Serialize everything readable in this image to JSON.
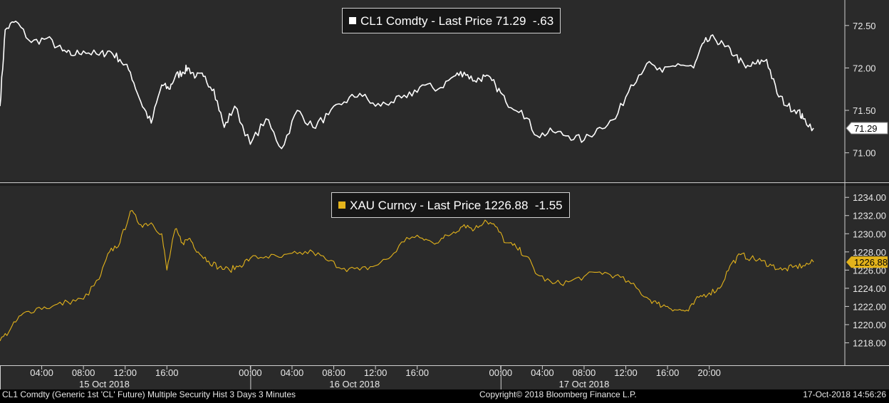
{
  "chart_data": [
    {
      "type": "line",
      "series": [
        {
          "name": "CL1 Comdty - Last Price",
          "color": "#ffffff",
          "last_value": "71.29",
          "change": "-.63",
          "x": [
            0,
            0.5,
            1.5,
            3,
            4.5,
            6,
            6.8,
            8,
            9.5,
            10.5,
            11.5,
            12.5,
            13.5,
            14.5,
            15.5,
            16.2,
            16.8,
            17.5,
            18,
            18.8,
            19.5,
            20.5,
            21.5,
            22.5,
            24,
            25.5,
            27,
            28.5,
            30,
            31.5,
            33,
            34.5,
            36,
            37.5,
            39,
            40.5,
            42,
            43.5,
            44.5,
            45.5,
            46.5,
            47.5,
            48.5,
            50,
            51.5,
            53,
            54.5,
            56,
            57.5,
            59,
            60.5,
            62,
            63.5,
            65,
            66.5,
            67.5,
            68.5,
            69.5,
            70.5,
            71.5,
            72.5,
            73.5,
            74.5,
            75.5,
            76.5,
            77,
            78
          ],
          "values": [
            71.55,
            72.45,
            72.55,
            72.3,
            72.35,
            72.2,
            72.15,
            72.2,
            72.15,
            72.2,
            72.1,
            71.95,
            71.6,
            71.35,
            71.8,
            71.75,
            71.9,
            71.95,
            72.0,
            71.9,
            71.9,
            71.75,
            71.3,
            71.55,
            71.1,
            71.4,
            71.05,
            71.5,
            71.3,
            71.45,
            71.6,
            71.7,
            71.55,
            71.6,
            71.65,
            71.8,
            71.75,
            71.9,
            71.95,
            71.85,
            71.9,
            71.8,
            71.6,
            71.5,
            71.2,
            71.25,
            71.2,
            71.15,
            71.3,
            71.4,
            71.8,
            72.05,
            71.95,
            72.05,
            72.0,
            72.3,
            72.35,
            72.25,
            72.15,
            72.0,
            72.05,
            72.1,
            71.7,
            71.55,
            71.5,
            71.4,
            71.29
          ],
          "min": 70.9
        }
      ],
      "ylim": [
        70.72,
        72.75
      ],
      "yticks": [
        "72.50",
        "72.00",
        "71.50",
        "71.00"
      ]
    },
    {
      "type": "line",
      "series": [
        {
          "name": "XAU Curncy - Last Price",
          "color": "#e3b31b",
          "last_value": "1226.88",
          "change": "-1.55",
          "x": [
            0,
            1,
            2,
            3.5,
            5,
            6.5,
            8,
            9.5,
            10.5,
            11.5,
            12.5,
            13.5,
            14.5,
            15.5,
            16,
            16.8,
            17.5,
            18.2,
            19,
            20,
            21,
            22,
            23,
            24,
            25.5,
            27,
            28.5,
            30,
            31.5,
            33,
            34.5,
            36,
            37.5,
            39,
            40.5,
            41.5,
            42.5,
            43.5,
            44.5,
            45.5,
            46.5,
            47.5,
            48.5,
            49.5,
            50.5,
            51.5,
            53,
            54.5,
            56,
            57.5,
            59,
            60.5,
            62,
            63,
            64,
            65,
            66,
            67,
            68,
            69,
            70,
            71,
            72,
            73,
            74,
            75,
            76,
            77,
            78
          ],
          "values": [
            1218.2,
            1219.5,
            1221.0,
            1221.8,
            1222.0,
            1222.5,
            1222.8,
            1225.0,
            1228.0,
            1229.0,
            1232.5,
            1231.0,
            1231.2,
            1230.0,
            1226.0,
            1230.5,
            1229.0,
            1229.5,
            1228.0,
            1227.0,
            1226.3,
            1226.0,
            1226.5,
            1227.3,
            1227.5,
            1227.4,
            1227.8,
            1228.0,
            1227.0,
            1226.2,
            1226.0,
            1226.5,
            1227.5,
            1229.6,
            1229.5,
            1229.0,
            1229.5,
            1230.2,
            1231.0,
            1230.5,
            1231.5,
            1230.8,
            1229.0,
            1228.5,
            1227.5,
            1225.5,
            1224.5,
            1224.7,
            1225.3,
            1225.8,
            1225.4,
            1224.5,
            1223.0,
            1222.3,
            1222.0,
            1221.6,
            1221.5,
            1223.0,
            1223.5,
            1224.0,
            1226.5,
            1227.7,
            1227.3,
            1227.0,
            1226.5,
            1226.0,
            1226.3,
            1226.5,
            1226.88
          ],
          "max": 1233.3,
          "min": 1221.0
        }
      ],
      "ylim": [
        1216.0,
        1234.8
      ],
      "yticks": [
        "1234.00",
        "1232.00",
        "1230.00",
        "1228.00",
        "1226.00",
        "1224.00",
        "1222.00",
        "1220.00",
        "1218.00"
      ]
    }
  ],
  "x_axis": {
    "xlim": [
      0,
      81
    ],
    "ticks": [
      {
        "x": 4,
        "label": "04:00"
      },
      {
        "x": 8,
        "label": "08:00"
      },
      {
        "x": 12,
        "label": "12:00"
      },
      {
        "x": 16,
        "label": "16:00"
      },
      {
        "x": 24,
        "label": "00:00"
      },
      {
        "x": 28,
        "label": "04:00"
      },
      {
        "x": 32,
        "label": "08:00"
      },
      {
        "x": 36,
        "label": "12:00"
      },
      {
        "x": 40,
        "label": "16:00"
      },
      {
        "x": 48,
        "label": "00:00"
      },
      {
        "x": 52,
        "label": "04:00"
      },
      {
        "x": 56,
        "label": "08:00"
      },
      {
        "x": 60,
        "label": "12:00"
      },
      {
        "x": 64,
        "label": "16:00"
      },
      {
        "x": 68,
        "label": "20:00"
      }
    ],
    "dates": [
      {
        "x": 10,
        "label": "15 Oct 2018"
      },
      {
        "x": 34,
        "label": "16 Oct 2018"
      },
      {
        "x": 56,
        "label": "17 Oct 2018"
      }
    ]
  },
  "footer": {
    "left": "CL1 Comdty (Generic 1st 'CL' Future) Multiple Security Hist   3 Days 3 Minutes",
    "center": "Copyright© 2018 Bloomberg Finance L.P.",
    "right": "17-Oct-2018 14:56:26"
  }
}
